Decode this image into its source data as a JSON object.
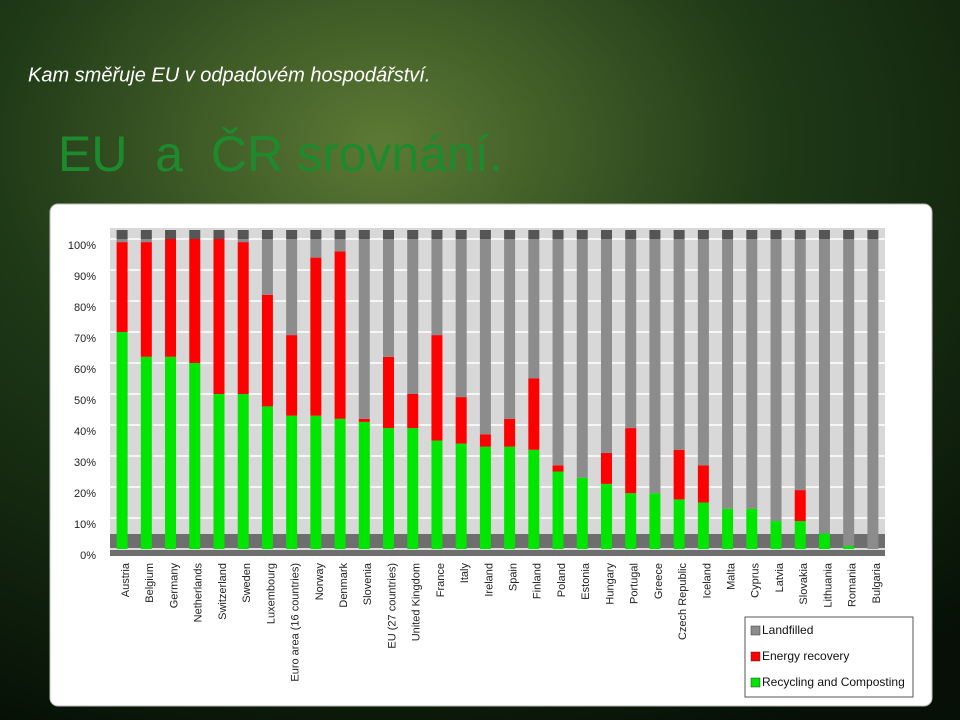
{
  "slide": {
    "subtitle": "Kam směřuje EU v odpadovém hospodářství.",
    "title": "EU  a  ČR srovnání."
  },
  "chart_data": {
    "type": "stacked_bar",
    "categories": [
      "Austria",
      "Belgium",
      "Germany",
      "Netherlands",
      "Switzerland",
      "Sweden",
      "Luxembourg",
      "Euro area (16 countries)",
      "Norway",
      "Denmark",
      "Slovenia",
      "EU (27 countries)",
      "United Kingdom",
      "France",
      "Italy",
      "Ireland",
      "Spain",
      "Finland",
      "Poland",
      "Estonia",
      "Hungary",
      "Portugal",
      "Greece",
      "Czech Republic",
      "Iceland",
      "Malta",
      "Cyprus",
      "Latvia",
      "Slovakia",
      "Lithuania",
      "Romania",
      "Bulgaria"
    ],
    "series": [
      {
        "name": "Landfilled",
        "color": "#8c8c8c",
        "values": [
          1,
          1,
          0,
          0,
          0,
          1,
          18,
          31,
          6,
          4,
          58,
          38,
          50,
          31,
          51,
          63,
          58,
          45,
          73,
          77,
          69,
          61,
          82,
          68,
          73,
          87,
          87,
          91,
          81,
          95,
          99,
          100
        ]
      },
      {
        "name": "Energy recovery",
        "color": "#ff0000",
        "values": [
          29,
          37,
          38,
          40,
          50,
          49,
          36,
          26,
          51,
          54,
          1,
          23,
          11,
          34,
          15,
          4,
          9,
          23,
          2,
          0,
          10,
          21,
          0,
          16,
          12,
          0,
          0,
          0,
          10,
          0,
          0,
          0
        ]
      },
      {
        "name": "Recycling and Composting",
        "color": "#00e600",
        "values": [
          70,
          62,
          62,
          60,
          50,
          50,
          46,
          43,
          43,
          42,
          41,
          39,
          39,
          35,
          34,
          33,
          33,
          32,
          25,
          23,
          21,
          18,
          18,
          16,
          15,
          13,
          13,
          9,
          9,
          5,
          1,
          0
        ]
      }
    ],
    "ylim": [
      0,
      100
    ],
    "yticks": [
      {
        "value": 0,
        "label": "0%"
      },
      {
        "value": 10,
        "label": "10%"
      },
      {
        "value": 20,
        "label": "20%"
      },
      {
        "value": 30,
        "label": "30%"
      },
      {
        "value": 40,
        "label": "40%"
      },
      {
        "value": 50,
        "label": "50%"
      },
      {
        "value": 60,
        "label": "60%"
      },
      {
        "value": 70,
        "label": "70%"
      },
      {
        "value": 80,
        "label": "80%"
      },
      {
        "value": 90,
        "label": "90%"
      },
      {
        "value": 100,
        "label": "100%"
      }
    ],
    "grid": true
  }
}
